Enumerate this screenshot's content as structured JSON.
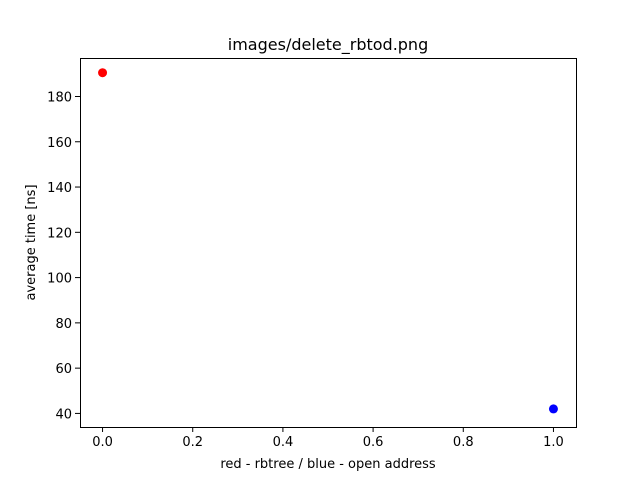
{
  "chart_data": {
    "type": "scatter",
    "title": "images/delete_rbtod.png",
    "xlabel": "red - rbtree / blue - open address",
    "ylabel": "average time [ns]",
    "xlim": [
      -0.05,
      1.05
    ],
    "ylim": [
      34,
      197
    ],
    "xticks": [
      0.0,
      0.2,
      0.4,
      0.6,
      0.8,
      1.0
    ],
    "xtick_labels": [
      "0.0",
      "0.2",
      "0.4",
      "0.6",
      "0.8",
      "1.0"
    ],
    "yticks": [
      40,
      60,
      80,
      100,
      120,
      140,
      160,
      180
    ],
    "ytick_labels": [
      "40",
      "60",
      "80",
      "100",
      "120",
      "140",
      "160",
      "180"
    ],
    "grid": false,
    "series": [
      {
        "x": [
          0.0
        ],
        "y": [
          190.5
        ],
        "color": "#ff0000"
      },
      {
        "x": [
          1.0
        ],
        "y": [
          42.0
        ],
        "color": "#0000ff"
      }
    ]
  }
}
